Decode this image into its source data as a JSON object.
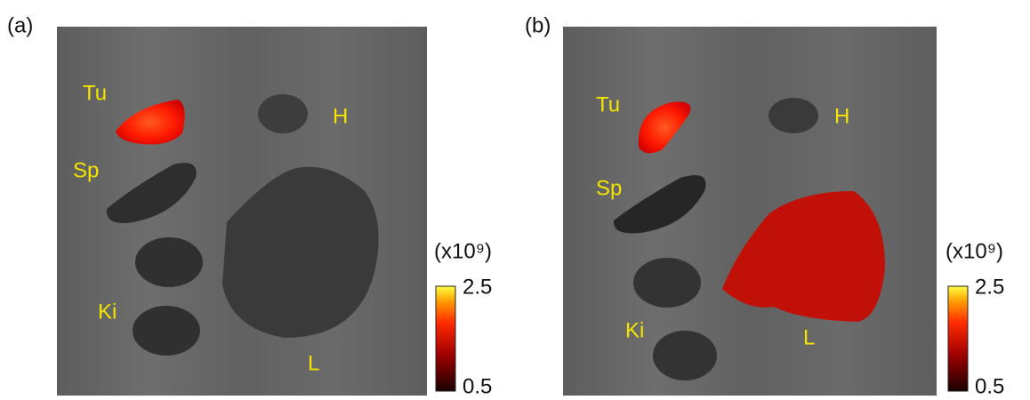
{
  "panels": [
    {
      "label": "(a)",
      "organs": {
        "tumor": "Tu",
        "heart": "H",
        "spleen": "Sp",
        "kidney": "Ki",
        "liver": "L"
      },
      "colorbar": {
        "unit": "(x10⁹)",
        "max": 2.5,
        "min": 0.5
      }
    },
    {
      "label": "(b)",
      "organs": {
        "tumor": "Tu",
        "heart": "H",
        "spleen": "Sp",
        "kidney": "Ki",
        "liver": "L"
      },
      "colorbar": {
        "unit": "(x10⁹)",
        "max": 2.5,
        "min": 0.5
      }
    }
  ]
}
